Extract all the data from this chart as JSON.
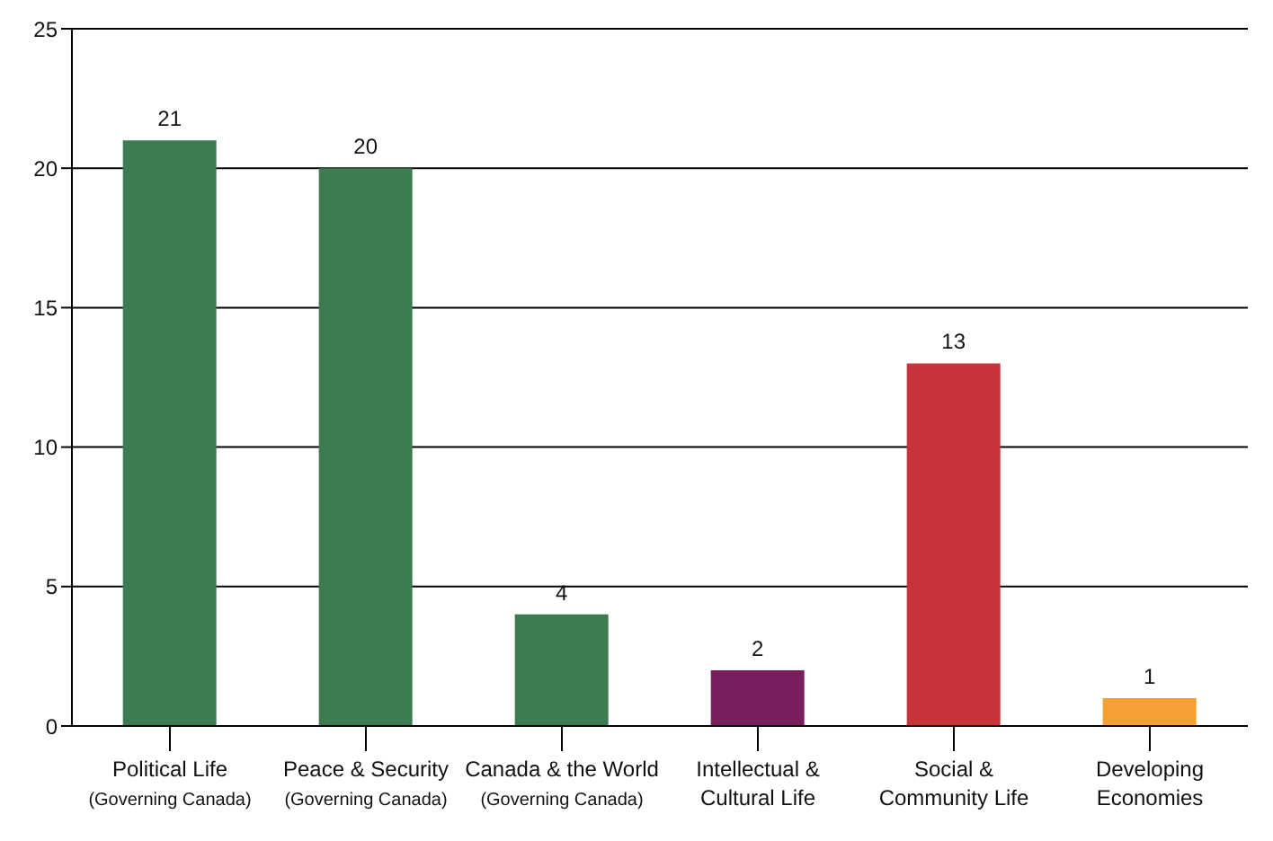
{
  "chart_data": {
    "type": "bar",
    "categories": [
      "Political Life\n(Governing Canada)",
      "Peace & Security\n(Governing Canada)",
      "Canada & the World\n(Governing Canada)",
      "Intellectual &\nCultural Life",
      "Social &\nCommunity Life",
      "Developing\nEconomies"
    ],
    "values": [
      21,
      20,
      4,
      2,
      13,
      1
    ],
    "colors": [
      "#3e7a52",
      "#3e7a52",
      "#3e7a52",
      "#7a1f5e",
      "#c8343a",
      "#f5a033"
    ],
    "ylim": [
      0,
      25
    ],
    "yticks": [
      0,
      5,
      10,
      15,
      20,
      25
    ],
    "grid": "y",
    "data_labels": true
  }
}
